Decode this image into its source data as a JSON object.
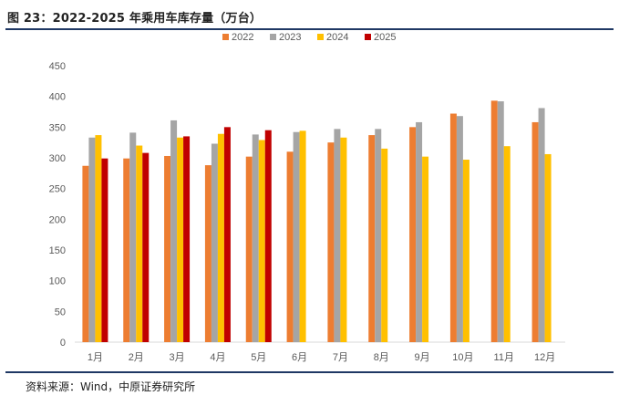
{
  "figure": {
    "title": "图 23：2022-2025 年乘用车库存量（万台）",
    "source": "资料来源：Wind，中原证券研究所"
  },
  "chart_data": {
    "type": "bar",
    "title": "2022-2025 年乘用车库存量（万台）",
    "xlabel": "",
    "ylabel": "",
    "ylim": [
      0,
      450
    ],
    "yticks": [
      0,
      50,
      100,
      150,
      200,
      250,
      300,
      350,
      400,
      450
    ],
    "grid": false,
    "legend_position": "top-center",
    "categories": [
      "1月",
      "2月",
      "3月",
      "4月",
      "5月",
      "6月",
      "7月",
      "8月",
      "9月",
      "10月",
      "11月",
      "12月"
    ],
    "series": [
      {
        "name": "2022",
        "color": "#ed7d31",
        "values": [
          287,
          299,
          303,
          288,
          302,
          310,
          325,
          337,
          350,
          372,
          393,
          358
        ]
      },
      {
        "name": "2023",
        "color": "#a5a5a5",
        "values": [
          333,
          341,
          361,
          323,
          338,
          342,
          347,
          347,
          358,
          368,
          392,
          381
        ]
      },
      {
        "name": "2024",
        "color": "#ffc000",
        "values": [
          337,
          320,
          333,
          339,
          329,
          344,
          333,
          315,
          302,
          297,
          319,
          306
        ]
      },
      {
        "name": "2025",
        "color": "#c00000",
        "values": [
          299,
          308,
          335,
          350,
          345,
          null,
          null,
          null,
          null,
          null,
          null,
          null
        ]
      }
    ]
  }
}
